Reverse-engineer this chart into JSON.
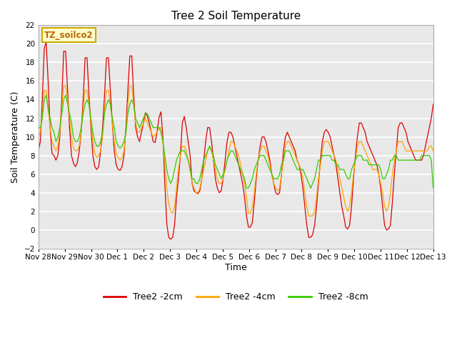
{
  "title": "Tree 2 Soil Temperature",
  "xlabel": "Time",
  "ylabel": "Soil Temperature (C)",
  "ylim": [
    -2,
    22
  ],
  "yticks": [
    -2,
    0,
    2,
    4,
    6,
    8,
    10,
    12,
    14,
    16,
    18,
    20,
    22
  ],
  "plot_bg_color": "#e8e8e8",
  "line_colors": {
    "2cm": "#dd0000",
    "4cm": "#ffa500",
    "8cm": "#33cc00"
  },
  "legend_labels": [
    "Tree2 -2cm",
    "Tree2 -4cm",
    "Tree2 -8cm"
  ],
  "annotation_text": "TZ_soilco2",
  "annotation_bg": "#ffffcc",
  "annotation_border": "#ccaa00",
  "x_tick_labels": [
    "Nov 28",
    "Nov 29",
    "Nov 30",
    "Dec 1",
    "Dec 2",
    "Dec 3",
    "Dec 4",
    "Dec 5",
    "Dec 6",
    "Dec 7",
    "Dec 8",
    "Dec 9",
    "Dec 10",
    "Dec 11",
    "Dec 12",
    "Dec 13"
  ],
  "t2cm": [
    8.5,
    9.5,
    14.0,
    19.5,
    20.2,
    16.0,
    11.0,
    8.2,
    8.0,
    7.5,
    8.0,
    10.0,
    14.0,
    19.2,
    19.2,
    15.0,
    11.0,
    8.0,
    7.2,
    6.8,
    7.2,
    8.5,
    10.5,
    14.0,
    18.5,
    18.5,
    14.5,
    11.0,
    8.0,
    6.8,
    6.5,
    6.8,
    8.5,
    11.0,
    14.5,
    18.5,
    18.5,
    15.0,
    11.5,
    8.5,
    7.0,
    6.5,
    6.4,
    6.8,
    8.0,
    11.0,
    15.0,
    18.7,
    18.7,
    14.5,
    11.0,
    10.0,
    9.5,
    10.5,
    11.5,
    12.6,
    12.2,
    11.5,
    10.5,
    9.5,
    9.4,
    10.5,
    12.1,
    12.7,
    10.0,
    5.0,
    0.7,
    -0.8,
    -1.0,
    -0.8,
    0.5,
    3.5,
    5.5,
    8.0,
    11.5,
    12.2,
    11.0,
    9.5,
    8.0,
    5.0,
    4.2,
    4.0,
    3.9,
    4.2,
    5.5,
    7.5,
    9.5,
    11.0,
    11.0,
    9.5,
    7.5,
    5.5,
    4.5,
    4.0,
    4.2,
    5.5,
    7.5,
    9.5,
    10.5,
    10.5,
    10.0,
    9.0,
    8.0,
    7.0,
    6.0,
    5.0,
    3.5,
    1.5,
    0.3,
    0.3,
    0.8,
    3.0,
    5.5,
    7.5,
    9.0,
    10.0,
    10.0,
    9.5,
    8.5,
    7.5,
    6.0,
    5.0,
    4.0,
    3.8,
    4.0,
    6.0,
    8.5,
    10.0,
    10.5,
    10.0,
    9.5,
    9.0,
    8.5,
    7.5,
    7.0,
    6.0,
    4.5,
    2.5,
    0.5,
    -0.8,
    -0.8,
    -0.5,
    0.5,
    2.5,
    5.0,
    7.5,
    9.5,
    10.5,
    10.8,
    10.5,
    10.0,
    9.0,
    8.0,
    7.0,
    5.5,
    4.0,
    2.5,
    1.5,
    0.3,
    0.1,
    0.5,
    2.5,
    5.5,
    8.0,
    10.0,
    11.5,
    11.5,
    11.0,
    10.5,
    9.5,
    9.0,
    8.5,
    8.0,
    7.5,
    7.0,
    6.0,
    4.5,
    2.5,
    0.5,
    0.0,
    0.1,
    0.5,
    3.0,
    6.0,
    8.5,
    11.0,
    11.5,
    11.5,
    11.0,
    10.5,
    9.5,
    9.0,
    8.5,
    8.0,
    7.5,
    7.5,
    7.5,
    7.5,
    8.0,
    9.0,
    10.0,
    11.0,
    12.0,
    13.5
  ],
  "t4cm": [
    10.0,
    10.5,
    12.5,
    15.0,
    15.0,
    13.0,
    11.0,
    9.5,
    9.0,
    8.5,
    9.0,
    10.5,
    13.0,
    15.5,
    15.5,
    14.0,
    12.0,
    10.0,
    8.8,
    8.5,
    8.5,
    9.0,
    10.5,
    13.0,
    15.0,
    15.0,
    13.5,
    11.5,
    9.5,
    8.2,
    7.8,
    8.0,
    8.5,
    10.0,
    13.0,
    15.0,
    15.0,
    13.5,
    11.5,
    9.5,
    8.2,
    7.8,
    7.5,
    7.8,
    8.5,
    10.5,
    13.5,
    15.5,
    15.5,
    13.5,
    11.5,
    10.5,
    10.5,
    11.0,
    11.5,
    12.0,
    11.5,
    11.0,
    10.5,
    10.0,
    10.2,
    10.5,
    11.0,
    11.0,
    9.5,
    7.0,
    4.5,
    2.8,
    2.0,
    1.8,
    2.5,
    4.5,
    6.5,
    8.0,
    9.0,
    9.0,
    8.5,
    7.5,
    6.5,
    5.0,
    4.5,
    4.0,
    4.0,
    4.5,
    5.5,
    6.5,
    7.5,
    8.5,
    9.0,
    8.5,
    7.5,
    6.5,
    5.5,
    5.0,
    5.0,
    5.5,
    6.5,
    7.5,
    8.5,
    9.5,
    9.5,
    9.0,
    8.5,
    8.0,
    7.0,
    6.0,
    5.0,
    3.5,
    1.8,
    1.8,
    2.5,
    4.0,
    6.0,
    7.5,
    8.5,
    9.0,
    9.0,
    8.5,
    8.0,
    7.0,
    6.0,
    5.0,
    4.5,
    4.2,
    4.5,
    6.0,
    7.5,
    9.0,
    9.5,
    9.5,
    9.0,
    8.5,
    8.0,
    7.5,
    7.0,
    6.5,
    5.5,
    4.0,
    2.5,
    1.5,
    1.5,
    1.5,
    2.0,
    3.5,
    5.5,
    7.0,
    8.5,
    9.5,
    9.5,
    9.5,
    9.0,
    8.5,
    8.0,
    7.5,
    6.5,
    5.5,
    4.5,
    3.5,
    2.5,
    2.0,
    2.5,
    4.0,
    6.0,
    7.5,
    9.0,
    9.5,
    9.5,
    9.0,
    8.5,
    8.0,
    7.5,
    7.0,
    6.5,
    6.5,
    6.5,
    6.0,
    5.0,
    4.0,
    2.5,
    2.0,
    2.5,
    4.0,
    6.0,
    7.5,
    8.5,
    9.5,
    9.5,
    9.5,
    9.0,
    8.5,
    8.5,
    8.5,
    8.5,
    8.5,
    8.5,
    8.5,
    8.5,
    8.5,
    8.5,
    8.5,
    8.5,
    9.0,
    9.0,
    8.5
  ],
  "t8cm": [
    11.0,
    11.0,
    12.0,
    14.0,
    14.5,
    13.0,
    12.0,
    11.0,
    10.5,
    9.5,
    10.0,
    11.0,
    12.5,
    14.0,
    14.5,
    13.5,
    12.5,
    11.5,
    10.0,
    9.5,
    9.5,
    10.0,
    11.0,
    12.5,
    13.5,
    14.0,
    13.5,
    12.0,
    10.5,
    9.5,
    9.0,
    9.0,
    9.5,
    10.5,
    12.5,
    13.5,
    14.0,
    13.5,
    12.0,
    11.0,
    9.5,
    9.0,
    8.8,
    9.0,
    9.5,
    10.5,
    12.5,
    13.5,
    14.0,
    13.5,
    12.0,
    11.5,
    11.0,
    11.5,
    12.0,
    12.5,
    12.5,
    12.0,
    11.5,
    11.0,
    11.0,
    11.0,
    11.0,
    10.5,
    9.5,
    8.0,
    6.5,
    5.5,
    5.0,
    5.5,
    6.5,
    7.5,
    8.0,
    8.5,
    8.5,
    8.5,
    8.0,
    7.5,
    6.5,
    5.5,
    5.5,
    5.0,
    5.0,
    5.5,
    6.5,
    7.5,
    8.0,
    8.5,
    9.0,
    8.5,
    8.0,
    7.0,
    6.5,
    6.0,
    5.5,
    6.0,
    6.5,
    7.5,
    8.0,
    8.5,
    8.5,
    8.0,
    7.5,
    7.0,
    6.5,
    6.0,
    5.5,
    4.5,
    4.5,
    5.0,
    5.5,
    6.5,
    7.0,
    7.5,
    8.0,
    8.0,
    8.0,
    7.5,
    7.0,
    6.5,
    6.0,
    5.5,
    5.5,
    5.5,
    6.0,
    7.0,
    7.5,
    8.5,
    8.5,
    8.5,
    8.0,
    7.5,
    7.0,
    6.5,
    6.5,
    6.5,
    6.5,
    6.0,
    5.5,
    5.0,
    4.5,
    5.0,
    5.5,
    6.5,
    7.5,
    7.5,
    8.0,
    8.0,
    8.0,
    8.0,
    8.0,
    7.5,
    7.5,
    7.0,
    7.0,
    6.5,
    6.5,
    6.5,
    6.0,
    5.5,
    5.5,
    6.5,
    7.0,
    7.5,
    8.0,
    8.0,
    8.0,
    7.5,
    7.5,
    7.5,
    7.0,
    7.0,
    7.0,
    7.0,
    7.0,
    7.0,
    6.5,
    5.5,
    5.5,
    6.0,
    6.5,
    7.5,
    7.5,
    8.0,
    8.0,
    7.5,
    7.5,
    7.5,
    7.5,
    7.5,
    7.5,
    7.5,
    7.5,
    7.5,
    7.5,
    7.5,
    7.5,
    8.0,
    8.0,
    8.0,
    8.0,
    8.0,
    7.5,
    4.5
  ]
}
